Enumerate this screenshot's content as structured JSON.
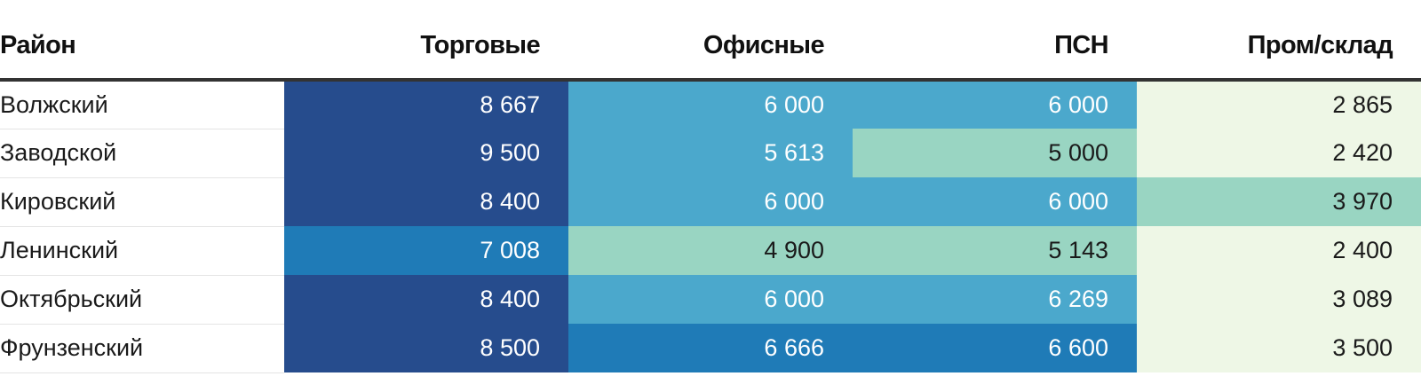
{
  "chart_data": {
    "type": "heatmap",
    "columns": {
      "district": "Район",
      "retail": "Торговые",
      "office": "Офисные",
      "psn": "ПСН",
      "industrial": "Пром/склад"
    },
    "rows": [
      {
        "district": "Волжский",
        "retail": "8 667",
        "office": "6 000",
        "psn": "6 000",
        "industrial": "2 865"
      },
      {
        "district": "Заводской",
        "retail": "9 500",
        "office": "5 613",
        "psn": "5 000",
        "industrial": "2 420"
      },
      {
        "district": "Кировский",
        "retail": "8 400",
        "office": "6 000",
        "psn": "6 000",
        "industrial": "3 970"
      },
      {
        "district": "Ленинский",
        "retail": "7 008",
        "office": "4 900",
        "psn": "5 143",
        "industrial": "2 400"
      },
      {
        "district": "Октябрьский",
        "retail": "8 400",
        "office": "6 000",
        "psn": "6 269",
        "industrial": "3 089"
      },
      {
        "district": "Фрунзенский",
        "retail": "8 500",
        "office": "6 666",
        "psn": "6 600",
        "industrial": "3 500"
      }
    ],
    "color_scale": [
      {
        "min": 7500,
        "bg": "#264c8d",
        "fg": "#ffffff"
      },
      {
        "min": 6500,
        "bg": "#1f7bb7",
        "fg": "#ffffff"
      },
      {
        "min": 5500,
        "bg": "#4ba8cc",
        "fg": "#ffffff"
      },
      {
        "min": 3700,
        "bg": "#99d5c2",
        "fg": "#1a1a1a"
      },
      {
        "min": 0,
        "bg": "#eef7e6",
        "fg": "#1a1a1a"
      }
    ]
  }
}
